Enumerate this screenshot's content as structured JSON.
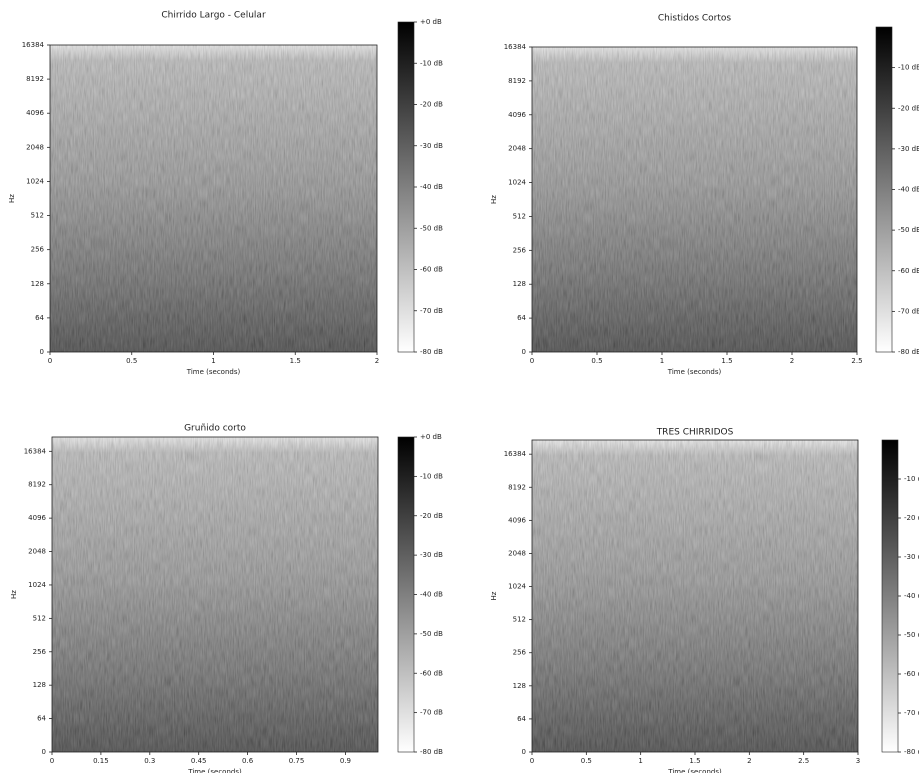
{
  "chart_data": [
    {
      "type": "spectrogram",
      "title": "Chirrido Largo - Celular",
      "xlabel": "Time (seconds)",
      "ylabel": "Hz",
      "xlim": [
        0,
        2
      ],
      "xticks": [
        0,
        0.5,
        1,
        1.5,
        2
      ],
      "yscale": "symlog",
      "linthresh": 64,
      "ylim": [
        0,
        16384
      ],
      "yticks": [
        0,
        64,
        128,
        256,
        512,
        1024,
        2048,
        4096,
        8192,
        16384
      ],
      "colormap": "gray_r",
      "colorbar": {
        "lim": [
          -80,
          0
        ],
        "ticks": [
          {
            "value": 0,
            "label": "+0 dB"
          },
          {
            "value": -10,
            "label": "-10 dB"
          },
          {
            "value": -20,
            "label": "-20 dB"
          },
          {
            "value": -30,
            "label": "-30 dB"
          },
          {
            "value": -40,
            "label": "-40 dB"
          },
          {
            "value": -50,
            "label": "-50 dB"
          },
          {
            "value": -60,
            "label": "-60 dB"
          },
          {
            "value": -70,
            "label": "-70 dB"
          },
          {
            "value": -80,
            "label": "-80 dB"
          }
        ]
      }
    },
    {
      "type": "spectrogram",
      "title": "Chistidos Cortos",
      "xlabel": "Time (seconds)",
      "ylabel": "Hz",
      "xlim": [
        0,
        2.5
      ],
      "xticks": [
        0,
        0.5,
        1,
        1.5,
        2,
        2.5
      ],
      "yscale": "symlog",
      "linthresh": 64,
      "ylim": [
        0,
        16384
      ],
      "yticks": [
        0,
        64,
        128,
        256,
        512,
        1024,
        2048,
        4096,
        8192,
        16384
      ],
      "colormap": "gray_r",
      "colorbar": {
        "lim": [
          -80,
          0
        ],
        "ticks": [
          {
            "value": -10,
            "label": "-10 dB"
          },
          {
            "value": -20,
            "label": "-20 dB"
          },
          {
            "value": -30,
            "label": "-30 dB"
          },
          {
            "value": -40,
            "label": "-40 dB"
          },
          {
            "value": -50,
            "label": "-50 dB"
          },
          {
            "value": -60,
            "label": "-60 dB"
          },
          {
            "value": -70,
            "label": "-70 dB"
          },
          {
            "value": -80,
            "label": "-80 dB"
          }
        ]
      }
    },
    {
      "type": "spectrogram",
      "title": "Gruñido corto",
      "xlabel": "Time (seconds)",
      "ylabel": "Hz",
      "xlim": [
        0,
        1
      ],
      "xticks": [
        0,
        0.15,
        0.3,
        0.45,
        0.6,
        0.75,
        0.9
      ],
      "yscale": "symlog",
      "linthresh": 64,
      "ylim": [
        0,
        22050
      ],
      "yticks": [
        0,
        64,
        128,
        256,
        512,
        1024,
        2048,
        4096,
        8192,
        16384
      ],
      "colormap": "gray_r",
      "colorbar": {
        "lim": [
          -80,
          0
        ],
        "ticks": [
          {
            "value": 0,
            "label": "+0 dB"
          },
          {
            "value": -10,
            "label": "-10 dB"
          },
          {
            "value": -20,
            "label": "-20 dB"
          },
          {
            "value": -30,
            "label": "-30 dB"
          },
          {
            "value": -40,
            "label": "-40 dB"
          },
          {
            "value": -50,
            "label": "-50 dB"
          },
          {
            "value": -60,
            "label": "-60 dB"
          },
          {
            "value": -70,
            "label": "-70 dB"
          },
          {
            "value": -80,
            "label": "-80 dB"
          }
        ]
      }
    },
    {
      "type": "spectrogram",
      "title": "TRES CHIRRIDOS",
      "xlabel": "Time (seconds)",
      "ylabel": "Hz",
      "xlim": [
        0,
        3
      ],
      "xticks": [
        0,
        0.5,
        1,
        1.5,
        2,
        2.5,
        3
      ],
      "yscale": "symlog",
      "linthresh": 64,
      "ylim": [
        0,
        22050
      ],
      "yticks": [
        0,
        64,
        128,
        256,
        512,
        1024,
        2048,
        4096,
        8192,
        16384
      ],
      "colormap": "gray_r",
      "colorbar": {
        "lim": [
          -80,
          0
        ],
        "ticks": [
          {
            "value": -10,
            "label": "-10 d"
          },
          {
            "value": -20,
            "label": "-20 d"
          },
          {
            "value": -30,
            "label": "-30 d"
          },
          {
            "value": -40,
            "label": "-40 d"
          },
          {
            "value": -50,
            "label": "-50 d"
          },
          {
            "value": -60,
            "label": "-60 d"
          },
          {
            "value": -70,
            "label": "-70 d"
          },
          {
            "value": -80,
            "label": "-80 d"
          }
        ]
      }
    }
  ]
}
